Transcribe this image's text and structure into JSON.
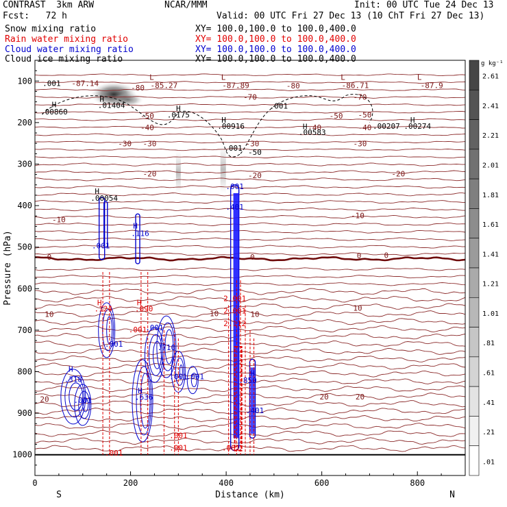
{
  "header": {
    "model": "CONTRAST  3km ARW",
    "org": "NCAR/MMM",
    "init": "Init: 00 UTC Tue 24 Dec 13",
    "fcst": "Fcst:   72 h",
    "valid": "Valid: 00 UTC Fri 27 Dec 13 (10 ChT Fri 27 Dec 13)"
  },
  "legend": [
    {
      "name": "Snow mixing ratio",
      "xy": "XY= 100.0,100.0 to 100.0,400.0",
      "color": "#000000"
    },
    {
      "name": "Rain water mixing ratio",
      "xy": "XY= 100.0,100.0 to 100.0,400.0",
      "color": "#e00000"
    },
    {
      "name": "Cloud water mixing ratio",
      "xy": "XY= 100.0,100.0 to 100.0,400.0",
      "color": "#0000cc"
    },
    {
      "name": "Cloud ice mixing ratio",
      "xy": "XY= 100.0,100.0 to 100.0,400.0",
      "color": "#000000"
    }
  ],
  "chart_data": {
    "type": "contour",
    "xlabel": "Distance (km)",
    "ylabel": "Pressure (hPa)",
    "x_ticks": [
      0,
      200,
      400,
      600,
      800
    ],
    "xlim": [
      0,
      900
    ],
    "y_ticks": [
      100,
      200,
      300,
      400,
      500,
      600,
      700,
      800,
      900,
      1000
    ],
    "ylim": [
      1050,
      50
    ],
    "y_scale": "linear, inverted",
    "end_labels": {
      "left": "S",
      "right": "N"
    },
    "colorbar": {
      "unit": "g kg⁻¹",
      "labels": [
        "2.61",
        "2.41",
        "2.21",
        "2.01",
        "1.81",
        "1.61",
        "1.41",
        "1.21",
        "1.01",
        ".81",
        ".61",
        ".41",
        ".21",
        ".01"
      ],
      "range": [
        0.01,
        2.81
      ]
    },
    "temperature_contours": [
      {
        "label": "-87.14",
        "level": 110
      },
      {
        "label": "-80",
        "level": 125
      },
      {
        "label": "-70",
        "level": 150
      },
      {
        "label": "-50",
        "level": 190
      },
      {
        "label": "-40",
        "level": 210
      },
      {
        "label": "-30",
        "level": 255
      },
      {
        "label": "-20",
        "level": 335
      },
      {
        "label": "-10",
        "level": 430
      },
      {
        "label": "0",
        "level": 528
      },
      {
        "label": "10",
        "level": 660
      },
      {
        "label": "20",
        "level": 860
      }
    ],
    "temperature_extrema": [
      {
        "kind": "L",
        "value": "-85.27",
        "x": 270,
        "p": 110
      },
      {
        "kind": "L",
        "value": "-87.89",
        "x": 420,
        "p": 110
      },
      {
        "kind": "L",
        "value": "-86.71",
        "x": 670,
        "p": 110
      },
      {
        "kind": "L",
        "value": "-87.9",
        "x": 830,
        "p": 110
      }
    ],
    "label_positions_note": "temperature contour label placements",
    "contour_labels": [
      {
        "text": ".001",
        "color": "#000000",
        "x": 35,
        "p": 112
      },
      {
        "text": "-87.14",
        "color": "#7a1414",
        "x": 105,
        "p": 112
      },
      {
        "text": "-80",
        "color": "#7a1414",
        "x": 215,
        "p": 123
      },
      {
        "text": "-80",
        "color": "#7a1414",
        "x": 540,
        "p": 118
      },
      {
        "text": "-70",
        "color": "#7a1414",
        "x": 450,
        "p": 145
      },
      {
        "text": "-70",
        "color": "#7a1414",
        "x": 680,
        "p": 145
      },
      {
        "text": "-50",
        "color": "#7a1414",
        "x": 235,
        "p": 190
      },
      {
        "text": "-50",
        "color": "#7a1414",
        "x": 630,
        "p": 190
      },
      {
        "text": "-50",
        "color": "#7a1414",
        "x": 690,
        "p": 188
      },
      {
        "text": "-40",
        "color": "#7a1414",
        "x": 235,
        "p": 218
      },
      {
        "text": "-40",
        "color": "#7a1414",
        "x": 585,
        "p": 218
      },
      {
        "text": "-40",
        "color": "#7a1414",
        "x": 690,
        "p": 218
      },
      {
        "text": "-30",
        "color": "#7a1414",
        "x": 188,
        "p": 257
      },
      {
        "text": "-30",
        "color": "#7a1414",
        "x": 240,
        "p": 257
      },
      {
        "text": "-30",
        "color": "#7a1414",
        "x": 455,
        "p": 257
      },
      {
        "text": "-30",
        "color": "#7a1414",
        "x": 680,
        "p": 257
      },
      {
        "text": "-20",
        "color": "#7a1414",
        "x": 240,
        "p": 330
      },
      {
        "text": "-20",
        "color": "#7a1414",
        "x": 460,
        "p": 334
      },
      {
        "text": "-20",
        "color": "#7a1414",
        "x": 760,
        "p": 330
      },
      {
        "text": "-10",
        "color": "#7a1414",
        "x": 50,
        "p": 440
      },
      {
        "text": "-10",
        "color": "#7a1414",
        "x": 675,
        "p": 430
      },
      {
        "text": "0",
        "color": "#7a1414",
        "x": 30,
        "p": 530
      },
      {
        "text": "0",
        "color": "#7a1414",
        "x": 455,
        "p": 530
      },
      {
        "text": "0",
        "color": "#7a1414",
        "x": 678,
        "p": 527
      },
      {
        "text": "0",
        "color": "#7a1414",
        "x": 735,
        "p": 526
      },
      {
        "text": "10",
        "color": "#7a1414",
        "x": 30,
        "p": 668
      },
      {
        "text": "10",
        "color": "#7a1414",
        "x": 375,
        "p": 666
      },
      {
        "text": "10",
        "color": "#7a1414",
        "x": 460,
        "p": 668
      },
      {
        "text": "10",
        "color": "#7a1414",
        "x": 675,
        "p": 653
      },
      {
        "text": "20",
        "color": "#7a1414",
        "x": 20,
        "p": 873
      },
      {
        "text": "20",
        "color": "#7a1414",
        "x": 605,
        "p": 867
      },
      {
        "text": "20",
        "color": "#7a1414",
        "x": 680,
        "p": 867
      },
      {
        "text": "H",
        "color": "#000000",
        "x": 40,
        "p": 163
      },
      {
        "text": ".00860",
        "color": "#000000",
        "x": 40,
        "p": 180
      },
      {
        "text": "H",
        "color": "#000000",
        "x": 140,
        "p": 150
      },
      {
        "text": ".01404",
        "color": "#000000",
        "x": 160,
        "p": 165
      },
      {
        "text": "H",
        "color": "#000000",
        "x": 300,
        "p": 172
      },
      {
        "text": ".0175",
        "color": "#000000",
        "x": 300,
        "p": 188
      },
      {
        "text": "H",
        "color": "#000000",
        "x": 395,
        "p": 200
      },
      {
        "text": ".00916",
        "color": "#000000",
        "x": 410,
        "p": 215
      },
      {
        "text": ".001",
        "color": "#000000",
        "x": 510,
        "p": 166
      },
      {
        "text": "H",
        "color": "#000000",
        "x": 565,
        "p": 216
      },
      {
        "text": ".00583",
        "color": "#000000",
        "x": 580,
        "p": 230
      },
      {
        "text": ".00207",
        "color": "#000000",
        "x": 735,
        "p": 215
      },
      {
        "text": "H",
        "color": "#000000",
        "x": 790,
        "p": 200
      },
      {
        "text": ".00274",
        "color": "#000000",
        "x": 800,
        "p": 215
      },
      {
        "text": ".001",
        "color": "#000000",
        "x": 415,
        "p": 268
      },
      {
        "text": "-50",
        "color": "#000000",
        "x": 460,
        "p": 278
      },
      {
        "text": "H",
        "color": "#000000",
        "x": 130,
        "p": 372
      },
      {
        "text": ".00054",
        "color": "#000000",
        "x": 145,
        "p": 388
      },
      {
        "text": ".001",
        "color": "#0000cc",
        "x": 418,
        "p": 360
      },
      {
        "text": ".401",
        "color": "#0000cc",
        "x": 418,
        "p": 410
      },
      {
        "text": ".001",
        "color": "#0000cc",
        "x": 138,
        "p": 503
      },
      {
        "text": "H",
        "color": "#0000cc",
        "x": 210,
        "p": 455
      },
      {
        "text": ".116",
        "color": "#0000cc",
        "x": 220,
        "p": 473
      },
      {
        "text": "H",
        "color": "#e00000",
        "x": 135,
        "p": 640
      },
      {
        "text": ".124",
        "color": "#e00000",
        "x": 143,
        "p": 655
      },
      {
        "text": "H",
        "color": "#e00000",
        "x": 218,
        "p": 640
      },
      {
        "text": ".090",
        "color": "#e00000",
        "x": 228,
        "p": 655
      },
      {
        "text": ".001",
        "color": "#e00000",
        "x": 215,
        "p": 705
      },
      {
        "text": ".001",
        "color": "#0000cc",
        "x": 250,
        "p": 700
      },
      {
        "text": ".710",
        "color": "#0000cc",
        "x": 275,
        "p": 748
      },
      {
        "text": ".001",
        "color": "#0000cc",
        "x": 300,
        "p": 818
      },
      {
        "text": ".001",
        "color": "#0000cc",
        "x": 335,
        "p": 818
      },
      {
        "text": ".001",
        "color": "#0000cc",
        "x": 165,
        "p": 740
      },
      {
        "text": "H",
        "color": "#0000cc",
        "x": 75,
        "p": 800
      },
      {
        "text": ".318",
        "color": "#0000cc",
        "x": 80,
        "p": 825
      },
      {
        "text": ".001",
        "color": "#0000cc",
        "x": 100,
        "p": 875
      },
      {
        "text": "H",
        "color": "#0000cc",
        "x": 220,
        "p": 852
      },
      {
        "text": ".636",
        "color": "#0000cc",
        "x": 228,
        "p": 868
      },
      {
        "text": "2.001",
        "color": "#e00000",
        "x": 418,
        "p": 630
      },
      {
        "text": "2.001",
        "color": "#e00000",
        "x": 418,
        "p": 660
      },
      {
        "text": "2.112",
        "color": "#e00000",
        "x": 418,
        "p": 690
      },
      {
        "text": "H",
        "color": "#0000cc",
        "x": 455,
        "p": 810
      },
      {
        "text": ".850",
        "color": "#0000cc",
        "x": 445,
        "p": 827
      },
      {
        "text": ".401",
        "color": "#0000cc",
        "x": 460,
        "p": 900
      },
      {
        "text": ".001",
        "color": "#e00000",
        "x": 165,
        "p": 1002
      },
      {
        "text": ".001",
        "color": "#e00000",
        "x": 300,
        "p": 960
      },
      {
        "text": ".001",
        "color": "#e00000",
        "x": 300,
        "p": 990
      },
      {
        "text": ".001",
        "color": "#e00000",
        "x": 410,
        "p": 990
      }
    ],
    "grid": false
  }
}
